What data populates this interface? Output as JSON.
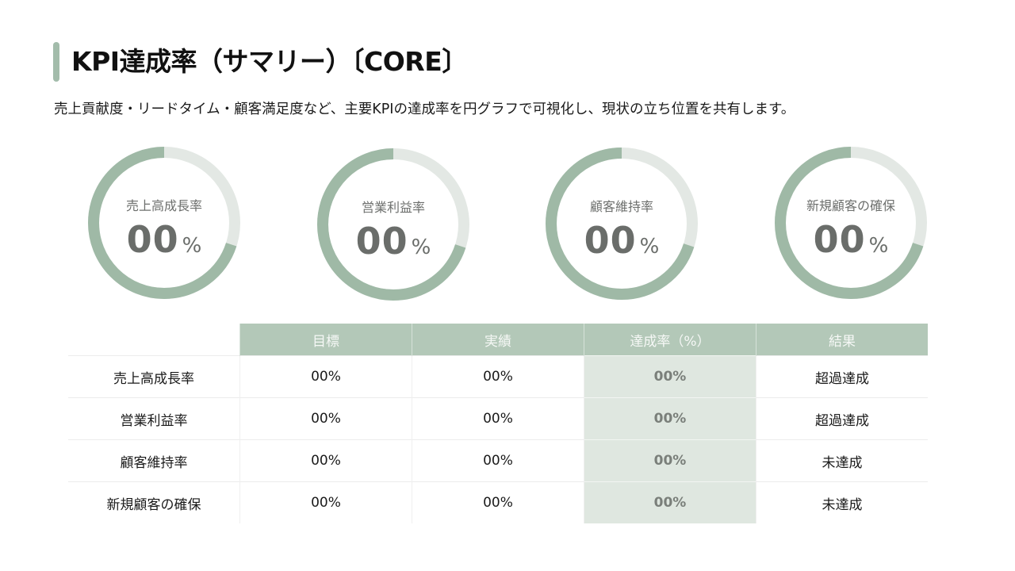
{
  "header": {
    "title": "KPI達成率（サマリー）〔CORE〕",
    "subtitle": "売上貢献度・リードタイム・顧客満足度など、主要KPIの達成率を円グラフで可視化し、現状の立ち位置を共有します。",
    "accent_color": "#a3bcab"
  },
  "donuts": [
    {
      "label": "売上高成長率",
      "value": "00",
      "unit": "%",
      "fill_pct": 70
    },
    {
      "label": "営業利益率",
      "value": "00",
      "unit": "%",
      "fill_pct": 70
    },
    {
      "label": "顧客維持率",
      "value": "00",
      "unit": "%",
      "fill_pct": 70
    },
    {
      "label": "新規顧客の確保",
      "value": "00",
      "unit": "%",
      "fill_pct": 70
    }
  ],
  "table": {
    "columns": [
      "",
      "目標",
      "実績",
      "達成率（%）",
      "結果"
    ],
    "rows": [
      {
        "name": "売上高成長率",
        "target": "00%",
        "actual": "00%",
        "rate": "00%",
        "result": "超過達成"
      },
      {
        "name": "営業利益率",
        "target": "00%",
        "actual": "00%",
        "rate": "00%",
        "result": "超過達成"
      },
      {
        "name": "顧客維持率",
        "target": "00%",
        "actual": "00%",
        "rate": "00%",
        "result": "未達成"
      },
      {
        "name": "新規顧客の確保",
        "target": "00%",
        "actual": "00%",
        "rate": "00%",
        "result": "未達成"
      }
    ]
  },
  "colors": {
    "ring_filled": "#9fb9a6",
    "ring_track": "#e3e8e4",
    "header_bg": "#b3c8b8",
    "rate_col_bg": "#dfe7e0"
  },
  "chart_data": {
    "type": "pie",
    "title": "KPI達成率（サマリー）〔CORE〕",
    "categories": [
      "売上高成長率",
      "営業利益率",
      "顧客維持率",
      "新規顧客の確保"
    ],
    "values": [
      70,
      70,
      70,
      70
    ],
    "value_labels": [
      "00%",
      "00%",
      "00%",
      "00%"
    ],
    "style": "donut",
    "start_angle": "12 o'clock",
    "direction": "counterclockwise fill",
    "legend": "none",
    "table": {
      "columns": [
        "目標",
        "実績",
        "達成率（%）",
        "結果"
      ],
      "rows": [
        [
          "売上高成長率",
          "00%",
          "00%",
          "00%",
          "超過達成"
        ],
        [
          "営業利益率",
          "00%",
          "00%",
          "00%",
          "超過達成"
        ],
        [
          "顧客維持率",
          "00%",
          "00%",
          "00%",
          "未達成"
        ],
        [
          "新規顧客の確保",
          "00%",
          "00%",
          "00%",
          "未達成"
        ]
      ]
    }
  }
}
